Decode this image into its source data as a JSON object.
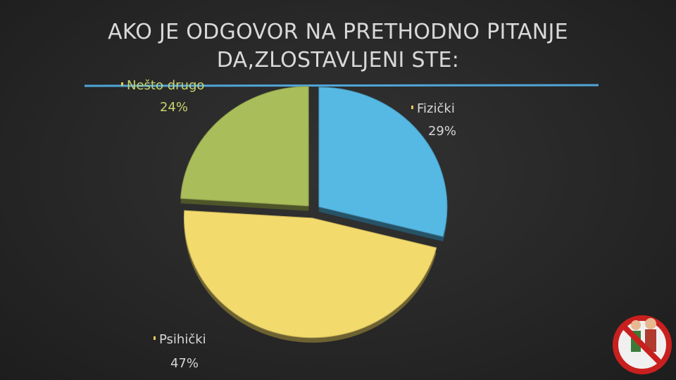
{
  "chart_data": {
    "type": "pie",
    "title": "AKO JE ODGOVOR NA PRETHODNO PITANJE DA,ZLOSTAVLJENI STE:",
    "categories": [
      "Fizički",
      "Psihički",
      "Nešto drugo"
    ],
    "values": [
      29,
      47,
      24
    ],
    "value_labels": [
      "29%",
      "47%",
      "24%"
    ],
    "colors": [
      "#56b9e4",
      "#f3da6d",
      "#aabd5b"
    ]
  }
}
